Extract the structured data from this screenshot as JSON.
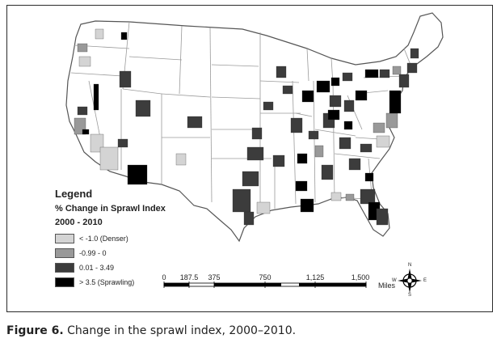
{
  "legend": {
    "title": "Legend",
    "subtitle_line1": "% Change in Sprawl Index",
    "subtitle_line2": "2000 - 2010",
    "items": [
      {
        "label": "< -1.0 (Denser)",
        "color": "#d4d4d4"
      },
      {
        "label": "-0.99 - 0",
        "color": "#999999"
      },
      {
        "label": "0.01 - 3.49",
        "color": "#3c3c3c"
      },
      {
        "label": "> 3.5 (Sprawling)",
        "color": "#000000"
      }
    ]
  },
  "scale_bar": {
    "ticks": [
      "0",
      "187.5",
      "375",
      "750",
      "1,125",
      "1,500"
    ],
    "unit": "Miles"
  },
  "compass": {
    "n": "N",
    "s": "S",
    "e": "E",
    "w": "W"
  },
  "caption": {
    "label": "Figure 6.",
    "text": "Change in the sprawl index, 2000–2010."
  },
  "colors": {
    "state_fill": "#ffffff",
    "state_border": "#9a9a9a",
    "country_border": "#555555"
  }
}
